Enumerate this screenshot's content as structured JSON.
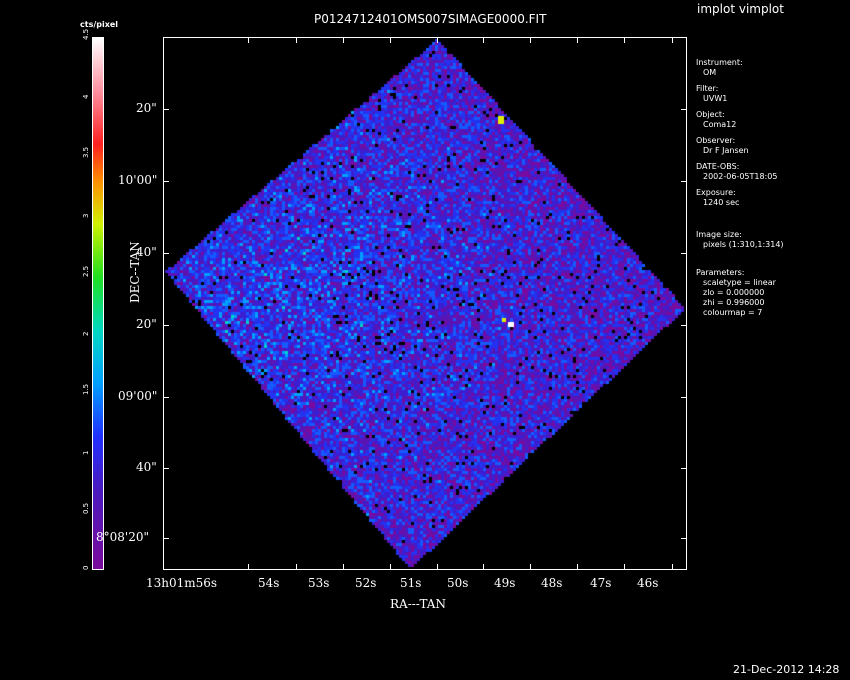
{
  "app_title": "implot vimplot",
  "plot_title": "P0124712401OMS007SIMAGE0000.FIT",
  "colorbar": {
    "label": "cts/pixel",
    "ticks": [
      "0",
      "0.5",
      "1",
      "1.5",
      "2",
      "2.5",
      "3",
      "3.5",
      "4",
      "4.5"
    ]
  },
  "axes": {
    "ylabel": "DEC--TAN",
    "xlabel": "RA---TAN",
    "y_ticks": [
      "20\"",
      "10'00\"",
      "40\"",
      "20\"",
      "09'00\"",
      "40\"",
      "8°08'20\""
    ],
    "x_ticks": [
      "13h01m56s",
      "54s",
      "53s",
      "52s",
      "51s",
      "50s",
      "49s",
      "48s",
      "47s",
      "46s"
    ]
  },
  "info": {
    "instrument_h": "Instrument:",
    "instrument_v": "OM",
    "filter_h": "Filter:",
    "filter_v": "UVW1",
    "object_h": "Object:",
    "object_v": "Coma12",
    "observer_h": "Observer:",
    "observer_v": "Dr F Jansen",
    "date_h": "DATE-OBS:",
    "date_v": "2002-06-05T18:05",
    "exposure_h": "Exposure:",
    "exposure_v": "1240 sec",
    "size_h": "Image size:",
    "size_v": "pixels (1:310,1:314)",
    "params_h": "Parameters:",
    "params": [
      "scaletype = linear",
      "zlo = 0.000000",
      "zhi = 0.996000",
      "colourmap =   7"
    ]
  },
  "date_stamp": "21-Dec-2012 14:28",
  "colors": {
    "background": "#000000",
    "foreground": "#ffffff",
    "low": "#5a1a8a",
    "mid": "#2a3aff",
    "high": "#ffffff"
  }
}
